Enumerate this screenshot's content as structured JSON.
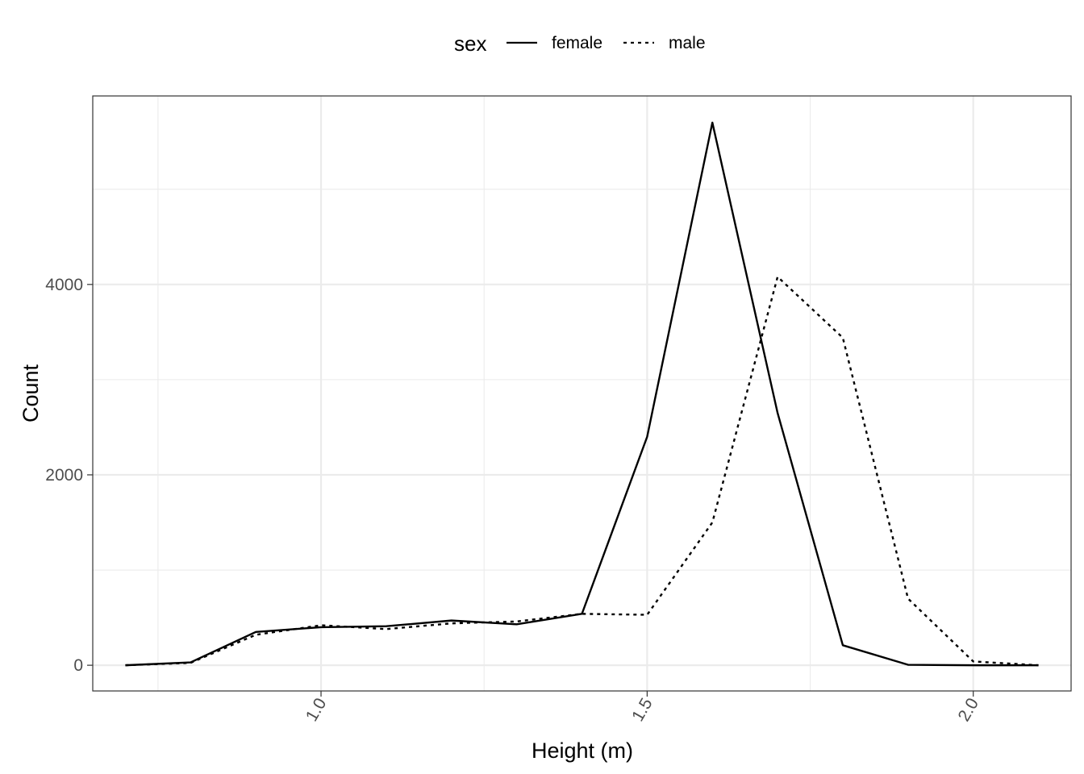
{
  "chart_data": {
    "type": "line",
    "xlabel": "Height (m)",
    "ylabel": "Count",
    "xlim": [
      0.65,
      2.15
    ],
    "ylim": [
      -270,
      5980
    ],
    "x_ticks": [
      1.0,
      1.5,
      2.0
    ],
    "x_tick_labels": [
      "1.0",
      "1.5",
      "2.0"
    ],
    "x_minor": [
      0.75,
      1.25,
      1.75
    ],
    "y_ticks": [
      0,
      2000,
      4000
    ],
    "y_tick_labels": [
      "0",
      "2000",
      "4000"
    ],
    "y_minor": [
      1000,
      3000,
      5000
    ],
    "grid": true,
    "legend": {
      "title": "sex",
      "position": "top",
      "entries": [
        "female",
        "male"
      ]
    },
    "x": [
      0.7,
      0.8,
      0.9,
      1.0,
      1.1,
      1.2,
      1.3,
      1.4,
      1.5,
      1.6,
      1.7,
      1.8,
      1.9,
      2.0,
      2.1
    ],
    "series": [
      {
        "name": "female",
        "line_style": "solid",
        "color": "#000000",
        "values": [
          0,
          30,
          350,
          400,
          410,
          470,
          430,
          540,
          2400,
          5700,
          2650,
          210,
          5,
          0,
          0
        ]
      },
      {
        "name": "male",
        "line_style": "dotted",
        "color": "#000000",
        "values": [
          0,
          25,
          320,
          420,
          380,
          440,
          460,
          540,
          530,
          1500,
          4080,
          3440,
          700,
          40,
          0
        ]
      }
    ]
  }
}
